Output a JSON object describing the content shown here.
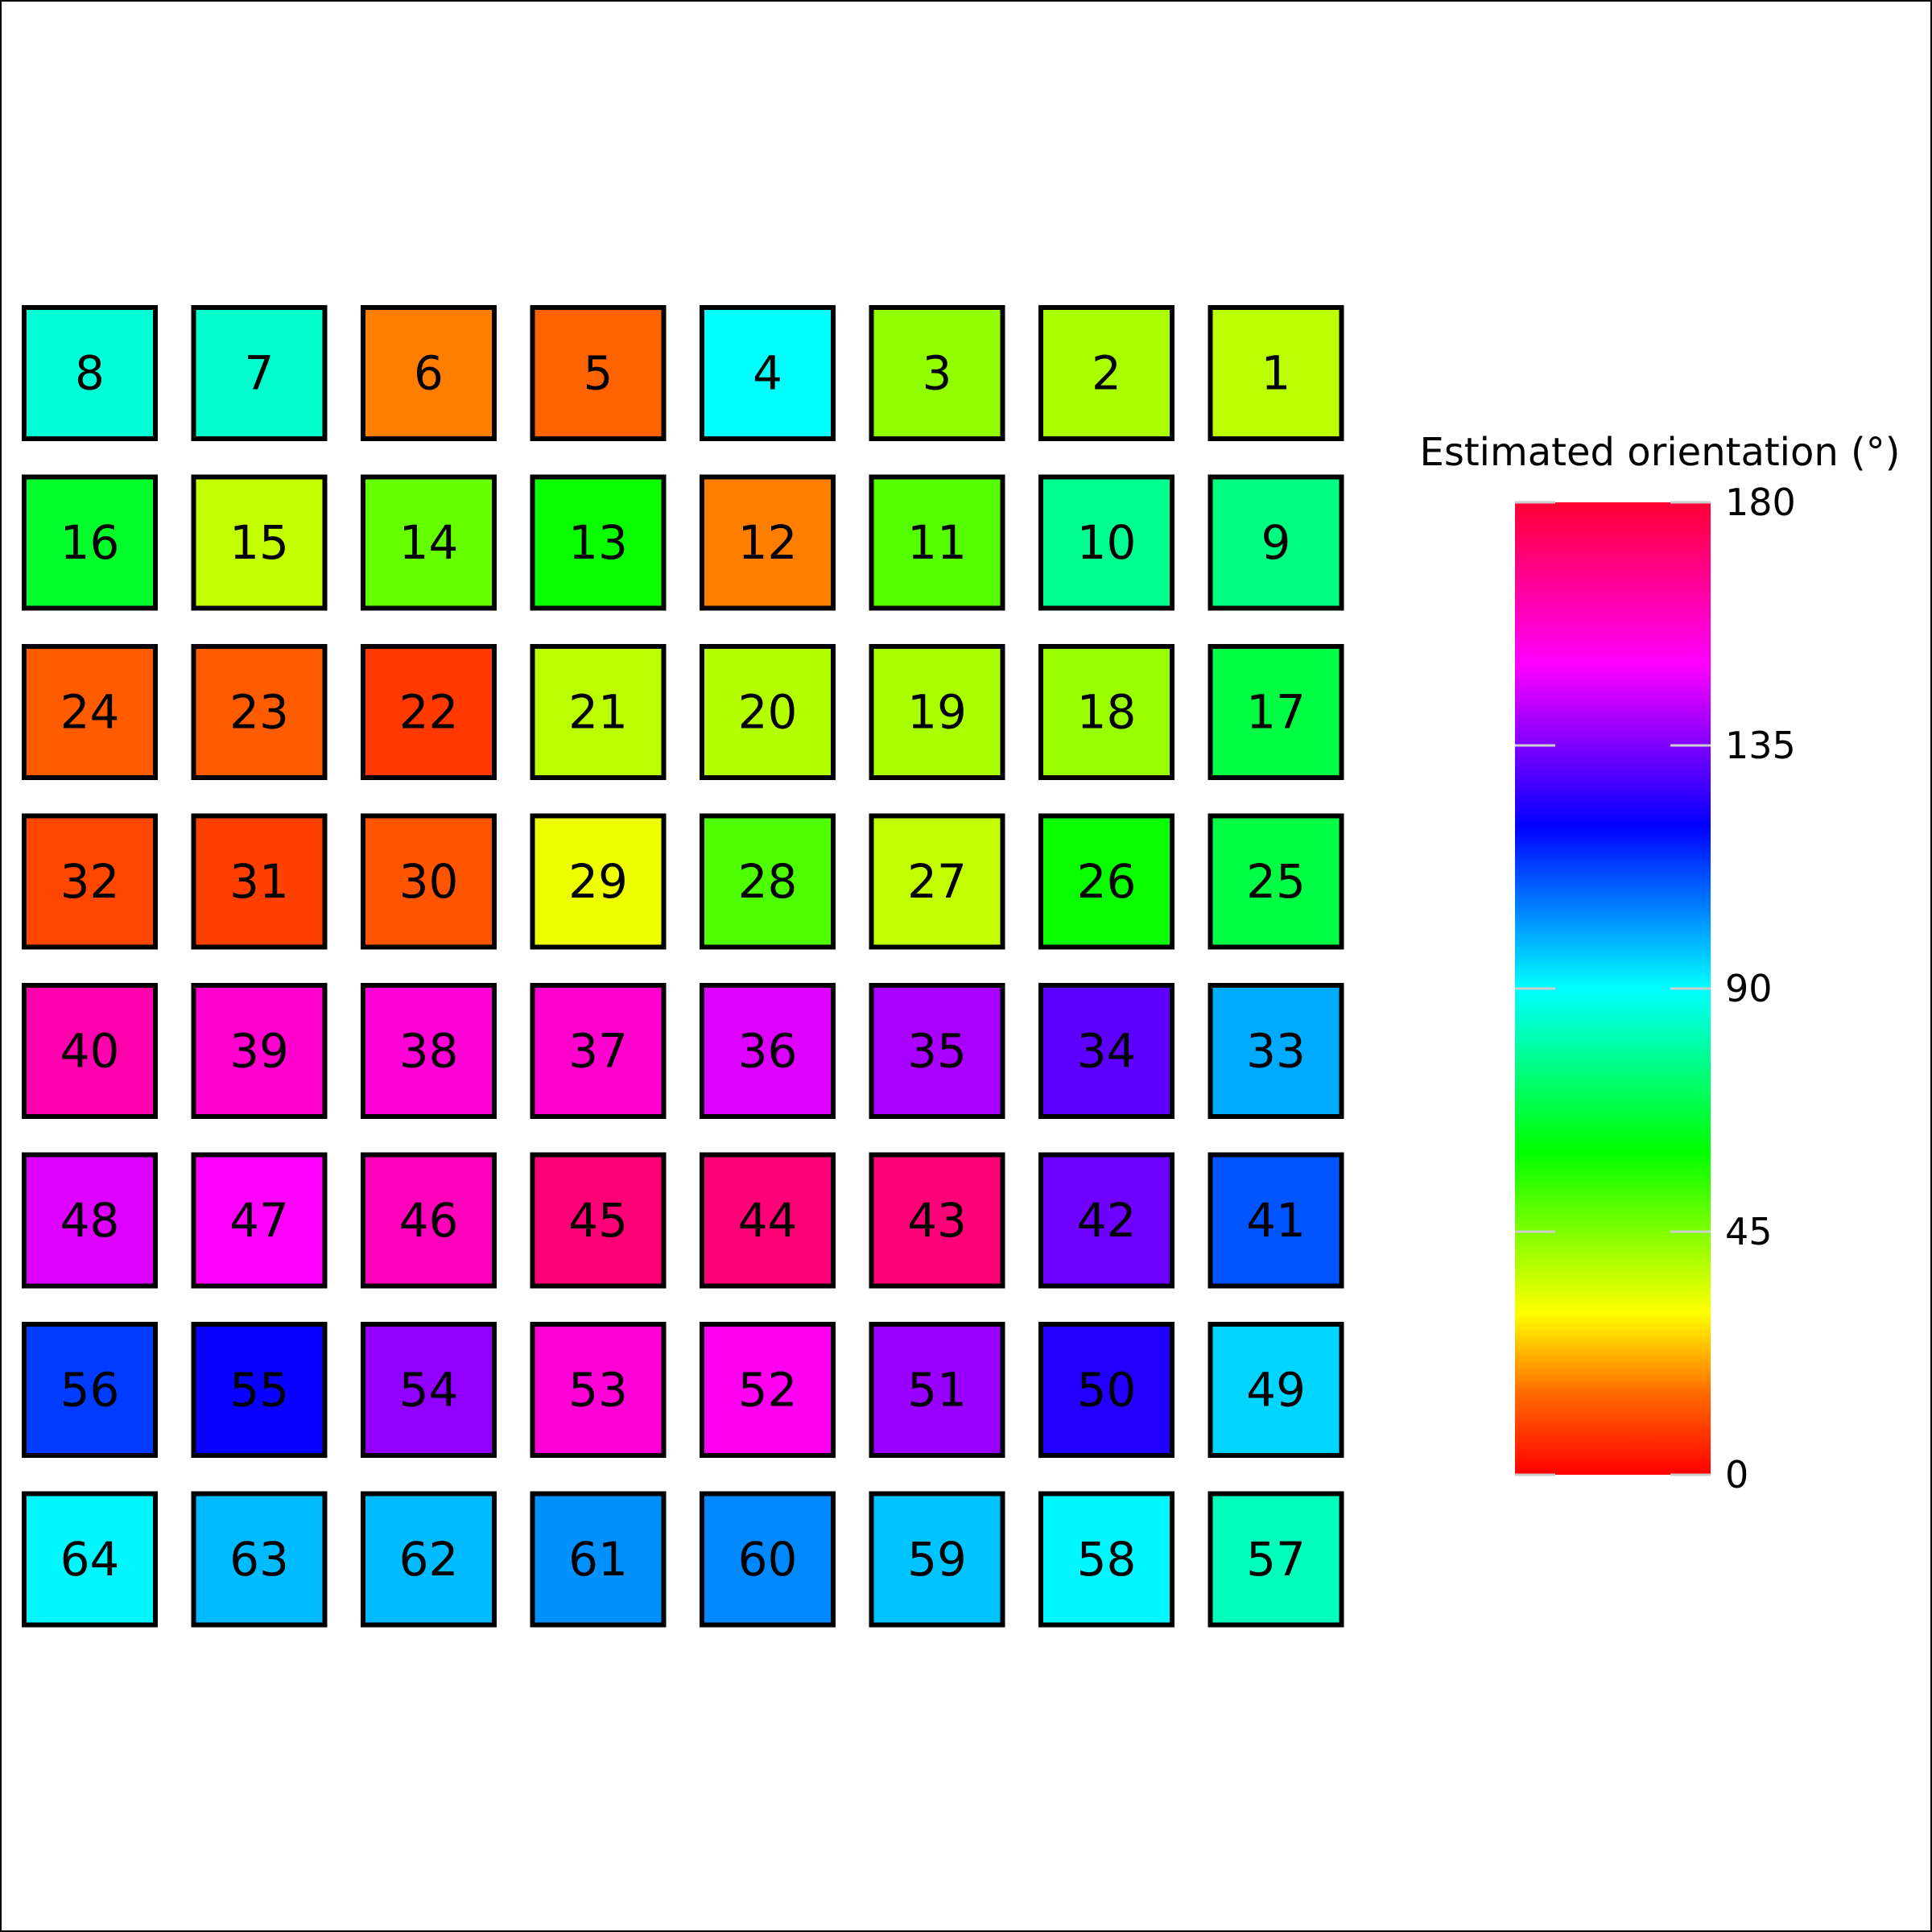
{
  "chart_data": {
    "type": "heatmap",
    "title": "",
    "xlabel": "",
    "ylabel": "",
    "grid": false,
    "rows": 8,
    "cols": 8,
    "cell_labels": [
      [
        8,
        7,
        6,
        5,
        4,
        3,
        2,
        1
      ],
      [
        16,
        15,
        14,
        13,
        12,
        11,
        10,
        9
      ],
      [
        24,
        23,
        22,
        21,
        20,
        19,
        18,
        17
      ],
      [
        32,
        31,
        30,
        29,
        28,
        27,
        26,
        25
      ],
      [
        40,
        39,
        38,
        37,
        36,
        35,
        34,
        33
      ],
      [
        48,
        47,
        46,
        45,
        44,
        43,
        42,
        41
      ],
      [
        56,
        55,
        54,
        53,
        52,
        51,
        50,
        49
      ],
      [
        64,
        63,
        62,
        61,
        60,
        59,
        58,
        57
      ]
    ],
    "values": [
      [
        85,
        84,
        17,
        14,
        90,
        43,
        40,
        38
      ],
      [
        65,
        37,
        48,
        59,
        17,
        50,
        77,
        75
      ],
      [
        13,
        13,
        8,
        38,
        39,
        40,
        42,
        68
      ],
      [
        10,
        9,
        12,
        32,
        51,
        37,
        59,
        68
      ],
      [
        162,
        157,
        156,
        157,
        146,
        140,
        131,
        100
      ],
      [
        146,
        150,
        160,
        170,
        170,
        170,
        133,
        110
      ],
      [
        113,
        121,
        137,
        156,
        152,
        138,
        124,
        95
      ],
      [
        91,
        98,
        98,
        103,
        104,
        97,
        91,
        82
      ]
    ],
    "colorbar": {
      "label": "Estimated orientation (°)",
      "vmin": 0,
      "vmax": 180,
      "ticks": [
        0,
        45,
        90,
        135,
        180
      ],
      "tick_labels": [
        "0",
        "45",
        "90",
        "135",
        "180"
      ],
      "colormap": "hsv-like",
      "colormap_stops": [
        {
          "value": 0,
          "color": "#ff0000"
        },
        {
          "value": 15,
          "color": "#ff6a00"
        },
        {
          "value": 30,
          "color": "#ffff00"
        },
        {
          "value": 60,
          "color": "#00ff00"
        },
        {
          "value": 90,
          "color": "#00ffff"
        },
        {
          "value": 120,
          "color": "#0000ff"
        },
        {
          "value": 150,
          "color": "#ff00ff"
        },
        {
          "value": 180,
          "color": "#ff0033"
        }
      ]
    }
  }
}
